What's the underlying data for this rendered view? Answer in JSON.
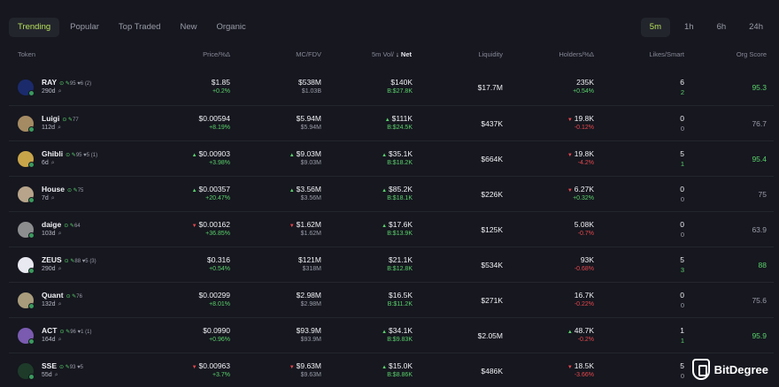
{
  "tabs": [
    {
      "label": "Trending",
      "active": true
    },
    {
      "label": "Popular",
      "active": false
    },
    {
      "label": "Top Traded",
      "active": false
    },
    {
      "label": "New",
      "active": false
    },
    {
      "label": "Organic",
      "active": false
    }
  ],
  "timeframes": [
    {
      "label": "5m",
      "active": true
    },
    {
      "label": "1h",
      "active": false
    },
    {
      "label": "6h",
      "active": false
    },
    {
      "label": "24h",
      "active": false
    }
  ],
  "headers": {
    "token": "Token",
    "price": "Price/%Δ",
    "mc": "MC/FDV",
    "vol": "5m Vol/",
    "net": "↓ Net",
    "liquidity": "Liquidity",
    "holders": "Holders/%Δ",
    "likes": "Likes/Smart",
    "org": "Org Score"
  },
  "rows": [
    {
      "name": "RAY",
      "age": "290d",
      "badges": "95 ♥6 (2)",
      "avatar": "#1b2a6b",
      "price": "$1.85",
      "price_chg": "+0.2%",
      "price_dir": "up",
      "price_arrow": "",
      "mc": "$538M",
      "fdv": "$1.03B",
      "mc_arrow": "",
      "vol": "$140K",
      "net": "B:$27.8K",
      "vol_arrow": "",
      "liq": "$17.7M",
      "holders": "235K",
      "hold_chg": "+0.54%",
      "hold_dir": "up",
      "hold_arrow": "",
      "likes": "6",
      "smart": "2",
      "org": "95.3",
      "org_green": true
    },
    {
      "name": "Luigi",
      "age": "112d",
      "badges": "77",
      "avatar": "#a58b63",
      "price": "$0.00594",
      "price_chg": "+8.19%",
      "price_dir": "up",
      "price_arrow": "",
      "mc": "$5.94M",
      "fdv": "$5.94M",
      "mc_arrow": "",
      "vol": "$111K",
      "net": "B:$24.5K",
      "vol_arrow": "up",
      "liq": "$437K",
      "holders": "19.8K",
      "hold_chg": "-0.12%",
      "hold_dir": "down",
      "hold_arrow": "down",
      "likes": "0",
      "smart": "0",
      "org": "76.7",
      "org_green": false
    },
    {
      "name": "Ghibli",
      "age": "6d",
      "badges": "95 ♥5 (1)",
      "avatar": "#c9a54a",
      "price": "$0.00903",
      "price_chg": "+3.98%",
      "price_dir": "up",
      "price_arrow": "up",
      "mc": "$9.03M",
      "fdv": "$9.03M",
      "mc_arrow": "up",
      "vol": "$35.1K",
      "net": "B:$18.2K",
      "vol_arrow": "up",
      "liq": "$664K",
      "holders": "19.8K",
      "hold_chg": "-4.2%",
      "hold_dir": "down",
      "hold_arrow": "down",
      "likes": "5",
      "smart": "1",
      "org": "95.4",
      "org_green": true
    },
    {
      "name": "House",
      "age": "7d",
      "badges": "75",
      "avatar": "#b7a48a",
      "price": "$0.00357",
      "price_chg": "+20.47%",
      "price_dir": "up",
      "price_arrow": "up",
      "mc": "$3.56M",
      "fdv": "$3.56M",
      "mc_arrow": "up",
      "vol": "$85.2K",
      "net": "B:$18.1K",
      "vol_arrow": "up",
      "liq": "$226K",
      "holders": "6.27K",
      "hold_chg": "+0.32%",
      "hold_dir": "up",
      "hold_arrow": "down",
      "likes": "0",
      "smart": "0",
      "org": "75",
      "org_green": false
    },
    {
      "name": "daige",
      "age": "103d",
      "badges": "64",
      "avatar": "#8c8d8f",
      "price": "$0.00162",
      "price_chg": "+36.85%",
      "price_dir": "up",
      "price_arrow": "down",
      "mc": "$1.62M",
      "fdv": "$1.62M",
      "mc_arrow": "down",
      "vol": "$17.6K",
      "net": "B:$13.9K",
      "vol_arrow": "up",
      "liq": "$125K",
      "holders": "5.08K",
      "hold_chg": "-0.7%",
      "hold_dir": "down",
      "hold_arrow": "",
      "likes": "0",
      "smart": "0",
      "org": "63.9",
      "org_green": false
    },
    {
      "name": "ZEUS",
      "age": "290d",
      "badges": "88 ♥5 (3)",
      "avatar": "#e9e9f2",
      "price": "$0.316",
      "price_chg": "+0.54%",
      "price_dir": "up",
      "price_arrow": "",
      "mc": "$121M",
      "fdv": "$318M",
      "mc_arrow": "",
      "vol": "$21.1K",
      "net": "B:$12.8K",
      "vol_arrow": "",
      "liq": "$534K",
      "holders": "93K",
      "hold_chg": "-0.68%",
      "hold_dir": "down",
      "hold_arrow": "",
      "likes": "5",
      "smart": "3",
      "org": "88",
      "org_green": true
    },
    {
      "name": "Quant",
      "age": "132d",
      "badges": "76",
      "avatar": "#a99c7c",
      "price": "$0.00299",
      "price_chg": "+8.01%",
      "price_dir": "up",
      "price_arrow": "",
      "mc": "$2.98M",
      "fdv": "$2.98M",
      "mc_arrow": "",
      "vol": "$16.5K",
      "net": "B:$11.2K",
      "vol_arrow": "",
      "liq": "$271K",
      "holders": "16.7K",
      "hold_chg": "-0.22%",
      "hold_dir": "down",
      "hold_arrow": "",
      "likes": "0",
      "smart": "0",
      "org": "75.6",
      "org_green": false
    },
    {
      "name": "ACT",
      "age": "164d",
      "badges": "96 ♥1 (1)",
      "avatar": "#7a5bb0",
      "price": "$0.0990",
      "price_chg": "+0.96%",
      "price_dir": "up",
      "price_arrow": "",
      "mc": "$93.9M",
      "fdv": "$93.9M",
      "mc_arrow": "",
      "vol": "$34.1K",
      "net": "B:$9.83K",
      "vol_arrow": "up",
      "liq": "$2.05M",
      "holders": "48.7K",
      "hold_chg": "-0.2%",
      "hold_dir": "down",
      "hold_arrow": "up",
      "likes": "1",
      "smart": "1",
      "org": "95.9",
      "org_green": true
    },
    {
      "name": "SSE",
      "age": "55d",
      "badges": "93 ♥5",
      "avatar": "#1e3b2a",
      "price": "$0.00963",
      "price_chg": "+3.7%",
      "price_dir": "up",
      "price_arrow": "down",
      "mc": "$9.63M",
      "fdv": "$9.63M",
      "mc_arrow": "down",
      "vol": "$15.0K",
      "net": "B:$8.86K",
      "vol_arrow": "up",
      "liq": "$486K",
      "holders": "18.5K",
      "hold_chg": "-3.66%",
      "hold_dir": "down",
      "hold_arrow": "down",
      "likes": "5",
      "smart": "0",
      "org": "",
      "org_green": false
    }
  ],
  "watermark": {
    "brand": "BitDegree"
  }
}
